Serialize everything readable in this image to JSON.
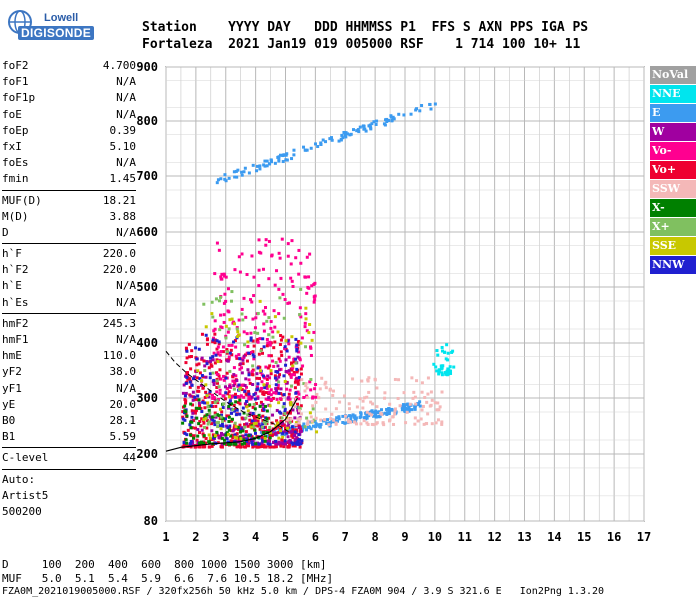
{
  "header": {
    "logo_top": "Lowell",
    "logo_bottom": "DIGISONDE",
    "line1": "Station    YYYY DAY   DDD HHMMSS P1  FFS S AXN PPS IGA PS",
    "line2": "Fortaleza  2021 Jan19 019 005000 RSF    1 714 100 10+ 11"
  },
  "side_params": [
    {
      "label": "foF2",
      "value": "4.700"
    },
    {
      "label": "foF1",
      "value": "N/A"
    },
    {
      "label": "foF1p",
      "value": "N/A"
    },
    {
      "label": "foE",
      "value": "N/A"
    },
    {
      "label": "foEp",
      "value": "0.39"
    },
    {
      "label": "fxI",
      "value": "5.10"
    },
    {
      "label": "foEs",
      "value": "N/A"
    },
    {
      "label": "fmin",
      "value": "1.45"
    },
    {
      "divider": true
    },
    {
      "label": "MUF(D)",
      "value": "18.21"
    },
    {
      "label": "M(D)",
      "value": "3.88"
    },
    {
      "label": "D",
      "value": "N/A"
    },
    {
      "divider": true
    },
    {
      "label": "h`F",
      "value": "220.0"
    },
    {
      "label": "h`F2",
      "value": "220.0"
    },
    {
      "label": "h`E",
      "value": "N/A"
    },
    {
      "label": "h`Es",
      "value": "N/A"
    },
    {
      "divider": true
    },
    {
      "label": "hmF2",
      "value": "245.3"
    },
    {
      "label": "hmF1",
      "value": "N/A"
    },
    {
      "label": "hmE",
      "value": "110.0"
    },
    {
      "label": "yF2",
      "value": "38.0"
    },
    {
      "label": "yF1",
      "value": "N/A"
    },
    {
      "label": "yE",
      "value": "20.0"
    },
    {
      "label": "B0",
      "value": "28.1"
    },
    {
      "label": "B1",
      "value": "5.59"
    },
    {
      "divider": true
    },
    {
      "label": "C-level",
      "value": "44"
    },
    {
      "divider": true
    },
    {
      "text": "Auto:"
    },
    {
      "text": "Artist5"
    },
    {
      "text": "500200"
    }
  ],
  "legend": [
    {
      "label": "NoVal",
      "color": "#a0a0a0"
    },
    {
      "label": "NNE",
      "color": "#00e5ee"
    },
    {
      "label": "E",
      "color": "#3c9bf0"
    },
    {
      "label": "W",
      "color": "#a000a0"
    },
    {
      "label": "Vo-",
      "color": "#ff0090"
    },
    {
      "label": "Vo+",
      "color": "#ee0030"
    },
    {
      "label": "SSW",
      "color": "#f4b8b8"
    },
    {
      "label": "X-",
      "color": "#008000"
    },
    {
      "label": "X+",
      "color": "#80c060"
    },
    {
      "label": "SSE",
      "color": "#c8c800"
    },
    {
      "label": "NNW",
      "color": "#2020d0"
    }
  ],
  "bottom": {
    "line1": "D     100  200  400  600  800 1000 1500 3000 [km]",
    "line2": "MUF   5.0  5.1  5.4  5.9  6.6  7.6 10.5 18.2 [MHz]",
    "line3": "FZA0M_2021019005000.RSF / 320fx256h 50 kHz 5.0 km / DPS-4 FZA0M 904 / 3.9 S 321.6 E   Ion2Png 1.3.20"
  },
  "chart_data": {
    "type": "scatter",
    "title": "",
    "xlabel": "",
    "ylabel": "",
    "xlim": [
      1,
      17
    ],
    "ylim": [
      80,
      900
    ],
    "x_ticks": [
      1,
      2,
      3,
      4,
      5,
      6,
      7,
      8,
      9,
      10,
      11,
      12,
      13,
      14,
      15,
      16,
      17
    ],
    "y_ticks": [
      80,
      200,
      300,
      400,
      500,
      600,
      700,
      800,
      900
    ],
    "grid": true,
    "legend_position": "right",
    "scatter_regions": [
      {
        "label": "NNE",
        "color": "#00e5ee",
        "x": [
          9.9,
          10.6
        ],
        "y": [
          345,
          400
        ],
        "n": 40
      },
      {
        "label": "E",
        "color": "#3c9bf0",
        "x": [
          2.6,
          10.0
        ],
        "y": [
          692,
          835
        ],
        "n": 120,
        "trend": true
      },
      {
        "label": "E",
        "color": "#3c9bf0",
        "x": [
          4.0,
          9.5
        ],
        "y": [
          235,
          290
        ],
        "n": 180,
        "trend": true
      },
      {
        "label": "Vo+",
        "color": "#ee0030",
        "x": [
          1.5,
          5.5
        ],
        "y": [
          215,
          420
        ],
        "n": 500
      },
      {
        "label": "Vo-",
        "color": "#ff0090",
        "x": [
          2.5,
          6.0
        ],
        "y": [
          300,
          590
        ],
        "n": 260
      },
      {
        "label": "W",
        "color": "#a000a0",
        "x": [
          1.5,
          5.5
        ],
        "y": [
          220,
          380
        ],
        "n": 170
      },
      {
        "label": "NNW",
        "color": "#2020d0",
        "x": [
          1.5,
          5.5
        ],
        "y": [
          220,
          420
        ],
        "n": 170
      },
      {
        "label": "X-",
        "color": "#008000",
        "x": [
          1.5,
          4.5
        ],
        "y": [
          220,
          300
        ],
        "n": 90
      },
      {
        "label": "X+",
        "color": "#80c060",
        "x": [
          2.0,
          6.0
        ],
        "y": [
          250,
          500
        ],
        "n": 80
      },
      {
        "label": "SSE",
        "color": "#c8c800",
        "x": [
          2.0,
          6.0
        ],
        "y": [
          230,
          480
        ],
        "n": 70
      },
      {
        "label": "SSW",
        "color": "#f4b8b8",
        "x": [
          5.0,
          10.2
        ],
        "y": [
          255,
          340
        ],
        "n": 150
      }
    ],
    "profile_curve": {
      "x": [
        1.0,
        1.5,
        2.0,
        2.5,
        3.0,
        3.5,
        4.0,
        4.5,
        5.0,
        5.4
      ],
      "y": [
        205,
        212,
        215,
        218,
        220,
        222,
        228,
        240,
        262,
        300
      ]
    },
    "dashed_curve": {
      "x": [
        1.0,
        1.3,
        1.7,
        2.2,
        2.7,
        3.1,
        3.6,
        4.2,
        4.8,
        5.1
      ],
      "y": [
        385,
        365,
        345,
        325,
        305,
        290,
        275,
        262,
        250,
        240
      ]
    }
  }
}
